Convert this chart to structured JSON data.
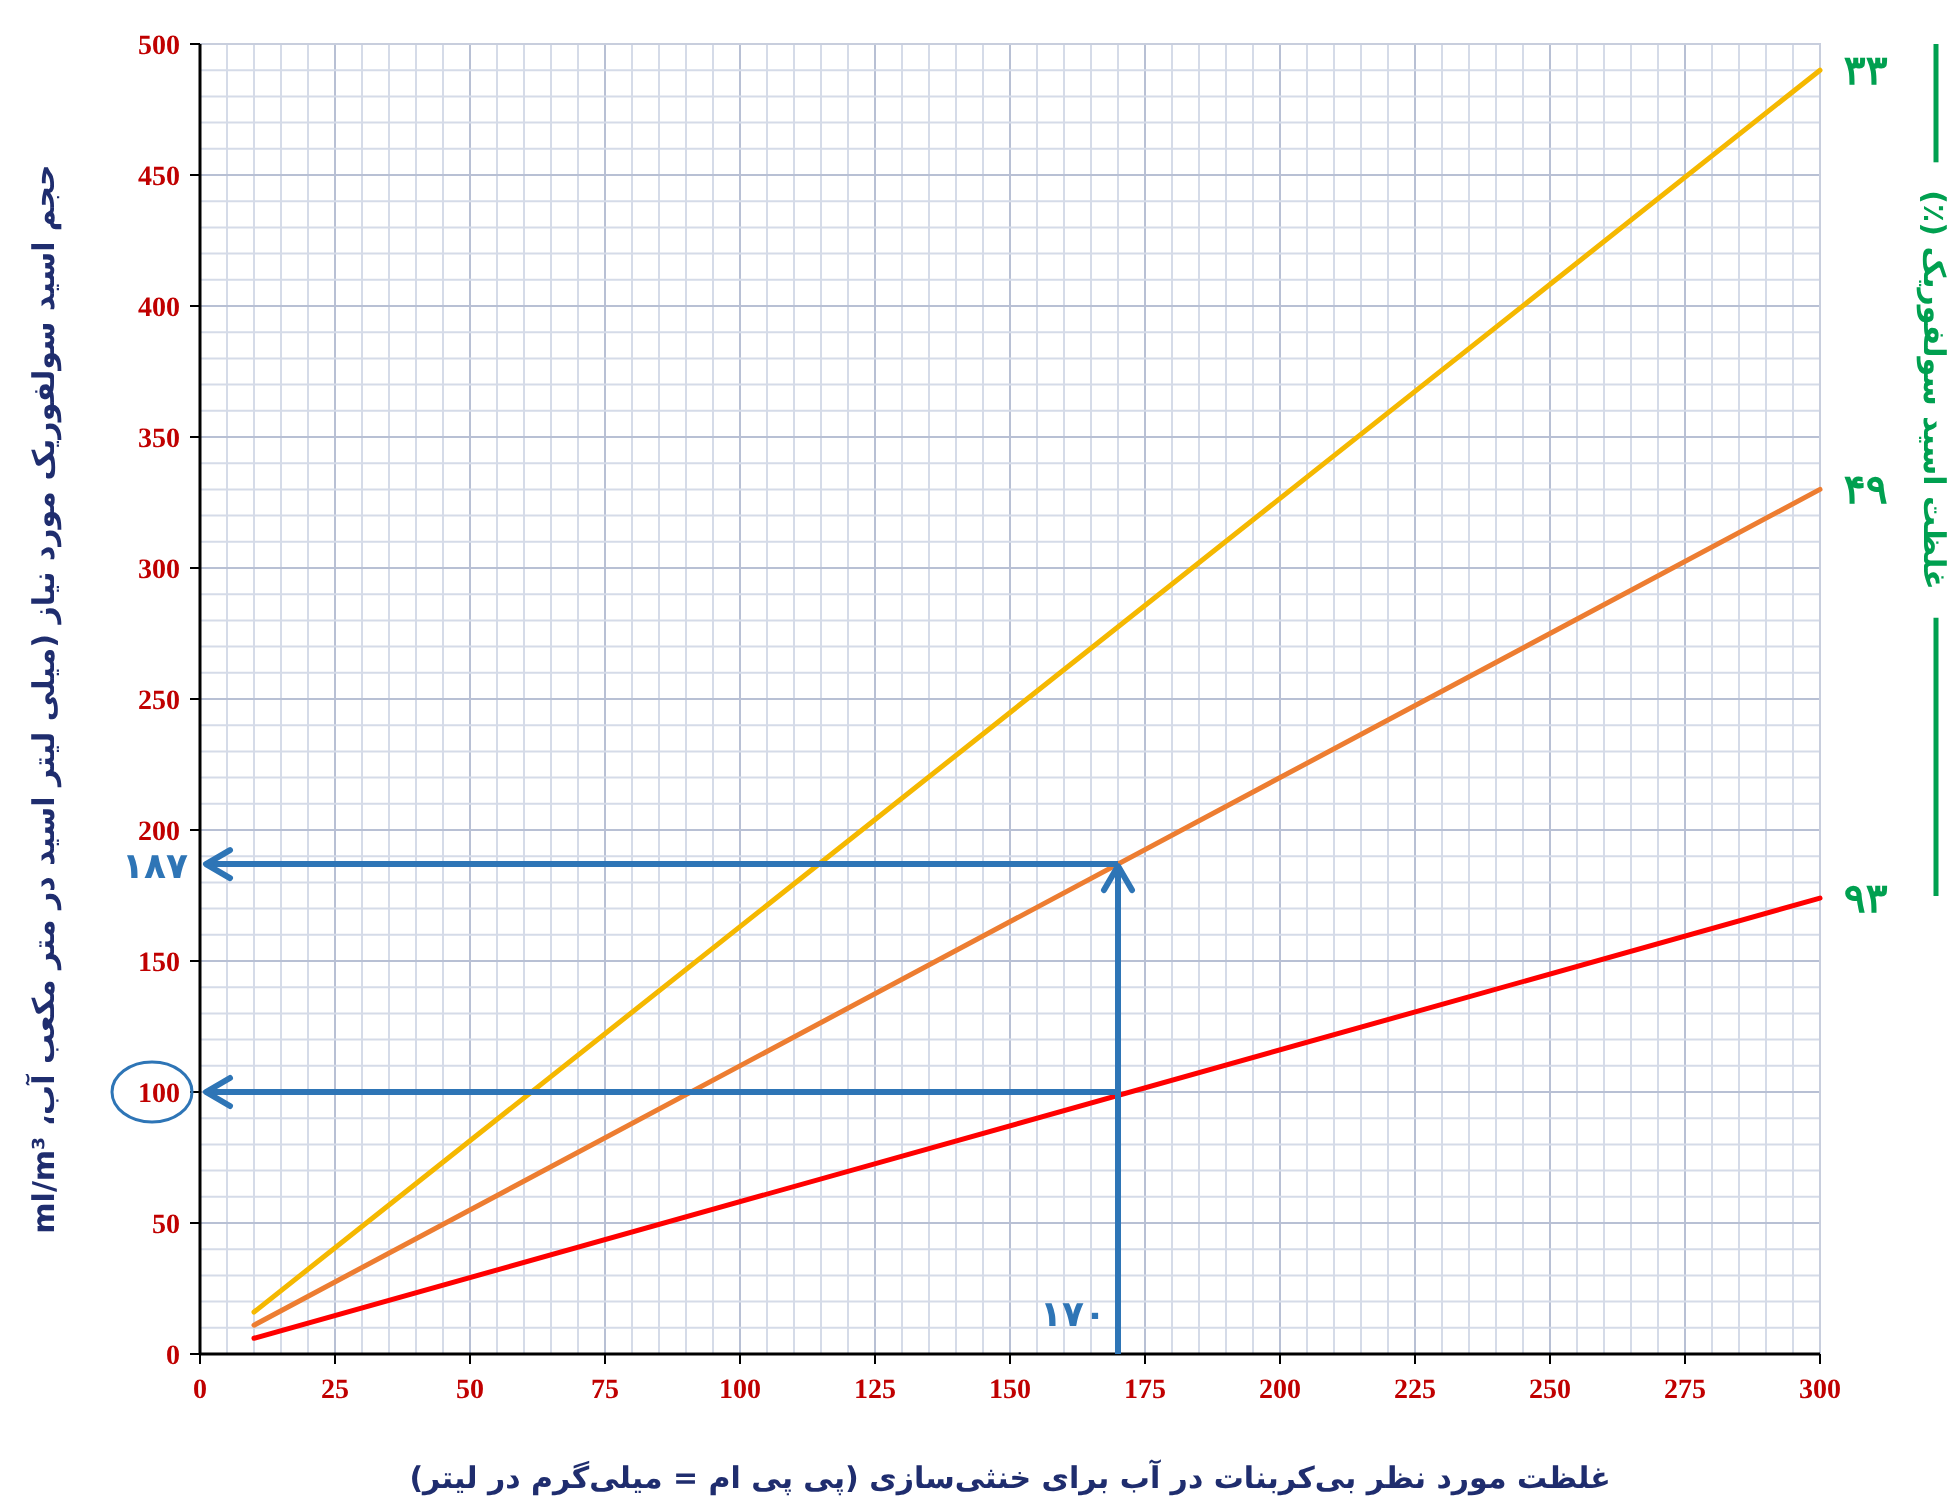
{
  "chart_data": {
    "type": "line",
    "xlabel": "غلظت مورد نظر بی‌کربنات در آب برای خنثی‌سازی (پی پی ام = میلی‌گرم در لیتر)",
    "ylabel": "حجم اسید سولفوریک مورد نیاز (میلی لیتر اسید  در متر مکعب آب، ml/m³",
    "legend_title": "غلظت اسید سولفوریک (٪)",
    "series": [
      {
        "name": "۳۳",
        "color": "#f5b800",
        "values": [
          16,
          490
        ]
      },
      {
        "name": "۴۹",
        "color": "#ed7d31",
        "values": [
          11,
          330
        ]
      },
      {
        "name": "۹۳",
        "color": "#ff0000",
        "values": [
          6,
          174
        ]
      }
    ],
    "x": [
      10,
      300
    ],
    "xlim": [
      0,
      300
    ],
    "xticks": [
      0,
      25,
      50,
      75,
      100,
      125,
      150,
      175,
      200,
      225,
      250,
      275,
      300
    ],
    "ylim": [
      0,
      500
    ],
    "yticks": [
      0,
      50,
      100,
      150,
      200,
      250,
      300,
      350,
      400,
      450,
      500
    ],
    "grid": true,
    "ref_lines": [
      {
        "axis": "x",
        "value": 170,
        "label": "۱۷۰",
        "color": "#2e75b6"
      },
      {
        "axis": "y",
        "value": 187,
        "label": "۱۸۷",
        "color": "#2e75b6"
      },
      {
        "axis": "y",
        "value": 100,
        "label": null,
        "color": "#2e75b6"
      }
    ]
  }
}
